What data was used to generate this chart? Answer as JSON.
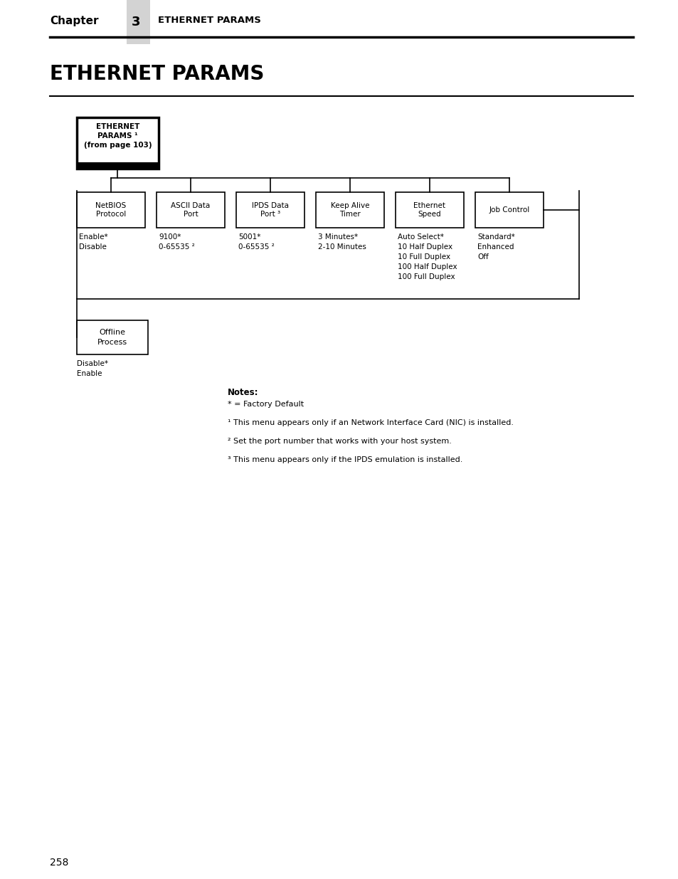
{
  "page_title": "ETHERNET PARAMS",
  "chapter_label": "Chapter",
  "chapter_num": "3",
  "chapter_section": "ETHERNET PARAMS",
  "page_number": "258",
  "root_box": {
    "label": "ETHERNET\nPARAMS ¹\n(from page 103)",
    "bold": true
  },
  "child_boxes": [
    {
      "label": "NetBIOS\nProtocol"
    },
    {
      "label": "ASCII Data\nPort"
    },
    {
      "label": "IPDS Data\nPort ³"
    },
    {
      "label": "Keep Alive\nTimer"
    },
    {
      "label": "Ethernet\nSpeed"
    },
    {
      "label": "Job Control"
    }
  ],
  "child_values": [
    "Enable*\nDisable",
    "9100*\n0-65535 ²",
    "5001*\n0-65535 ²",
    "3 Minutes*\n2-10 Minutes",
    "Auto Select*\n10 Half Duplex\n10 Full Duplex\n100 Half Duplex\n100 Full Duplex",
    "Standard*\nEnhanced\nOff"
  ],
  "second_row_box": {
    "label": "Offline\nProcess"
  },
  "second_row_values": "Disable*\nEnable",
  "notes_title": "Notes:",
  "notes": [
    "* = Factory Default",
    "¹ This menu appears only if an Network Interface Card (NIC) is installed.",
    "² Set the port number that works with your host system.",
    "³ This menu appears only if the IPDS emulation is installed."
  ],
  "bg_color": "#ffffff",
  "gray_bar_color": "#d3d3d3"
}
